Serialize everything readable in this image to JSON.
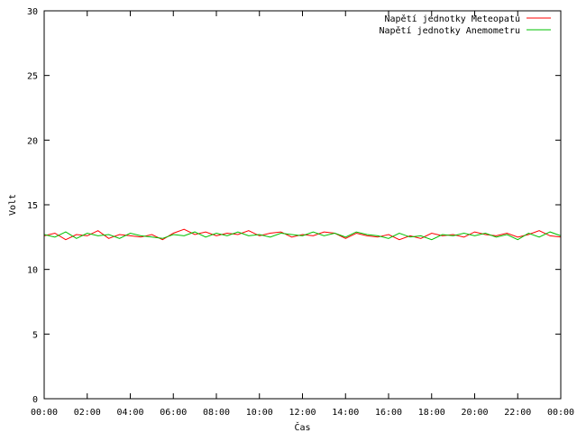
{
  "chart_data": {
    "type": "line",
    "title": "",
    "xlabel": "Čas",
    "ylabel": "Volt",
    "xlim": [
      0,
      24
    ],
    "ylim": [
      0,
      30
    ],
    "yticks": [
      0,
      5,
      10,
      15,
      20,
      25,
      30
    ],
    "xtick_values": [
      0,
      2,
      4,
      6,
      8,
      10,
      12,
      14,
      16,
      18,
      20,
      22,
      24
    ],
    "xtick_labels": [
      "00:00",
      "02:00",
      "04:00",
      "06:00",
      "08:00",
      "10:00",
      "12:00",
      "14:00",
      "16:00",
      "18:00",
      "20:00",
      "22:00",
      "00:00"
    ],
    "grid": false,
    "legend": "top-right",
    "series": [
      {
        "name": "Napětí jednotky Meteopatu",
        "color": "#ff0000",
        "x": [
          0,
          0.5,
          1,
          1.5,
          2,
          2.5,
          3,
          3.5,
          4,
          4.5,
          5,
          5.5,
          6,
          6.5,
          7,
          7.5,
          8,
          8.5,
          9,
          9.5,
          10,
          10.5,
          11,
          11.5,
          12,
          12.5,
          13,
          13.5,
          14,
          14.5,
          15,
          15.5,
          16,
          16.5,
          17,
          17.5,
          18,
          18.5,
          19,
          19.5,
          20,
          20.5,
          21,
          21.5,
          22,
          22.5,
          23,
          23.5,
          24
        ],
        "values": [
          12.6,
          12.8,
          12.3,
          12.7,
          12.6,
          13.0,
          12.4,
          12.7,
          12.6,
          12.5,
          12.7,
          12.3,
          12.8,
          13.1,
          12.7,
          12.9,
          12.6,
          12.8,
          12.7,
          13.0,
          12.6,
          12.8,
          12.9,
          12.5,
          12.7,
          12.6,
          12.9,
          12.8,
          12.4,
          12.8,
          12.6,
          12.5,
          12.7,
          12.3,
          12.6,
          12.4,
          12.8,
          12.6,
          12.7,
          12.5,
          12.9,
          12.7,
          12.6,
          12.8,
          12.5,
          12.7,
          13.0,
          12.6,
          12.5
        ]
      },
      {
        "name": "Napětí jednotky Anemometru",
        "color": "#00c000",
        "x": [
          0,
          0.5,
          1,
          1.5,
          2,
          2.5,
          3,
          3.5,
          4,
          4.5,
          5,
          5.5,
          6,
          6.5,
          7,
          7.5,
          8,
          8.5,
          9,
          9.5,
          10,
          10.5,
          11,
          11.5,
          12,
          12.5,
          13,
          13.5,
          14,
          14.5,
          15,
          15.5,
          16,
          16.5,
          17,
          17.5,
          18,
          18.5,
          19,
          19.5,
          20,
          20.5,
          21,
          21.5,
          22,
          22.5,
          23,
          23.5,
          24
        ],
        "values": [
          12.7,
          12.5,
          12.9,
          12.4,
          12.8,
          12.6,
          12.7,
          12.4,
          12.8,
          12.6,
          12.5,
          12.4,
          12.7,
          12.6,
          12.9,
          12.5,
          12.8,
          12.6,
          12.9,
          12.6,
          12.7,
          12.5,
          12.8,
          12.7,
          12.6,
          12.9,
          12.6,
          12.8,
          12.5,
          12.9,
          12.7,
          12.6,
          12.4,
          12.8,
          12.5,
          12.6,
          12.3,
          12.7,
          12.6,
          12.8,
          12.6,
          12.8,
          12.5,
          12.7,
          12.3,
          12.8,
          12.5,
          12.9,
          12.6
        ]
      }
    ]
  }
}
